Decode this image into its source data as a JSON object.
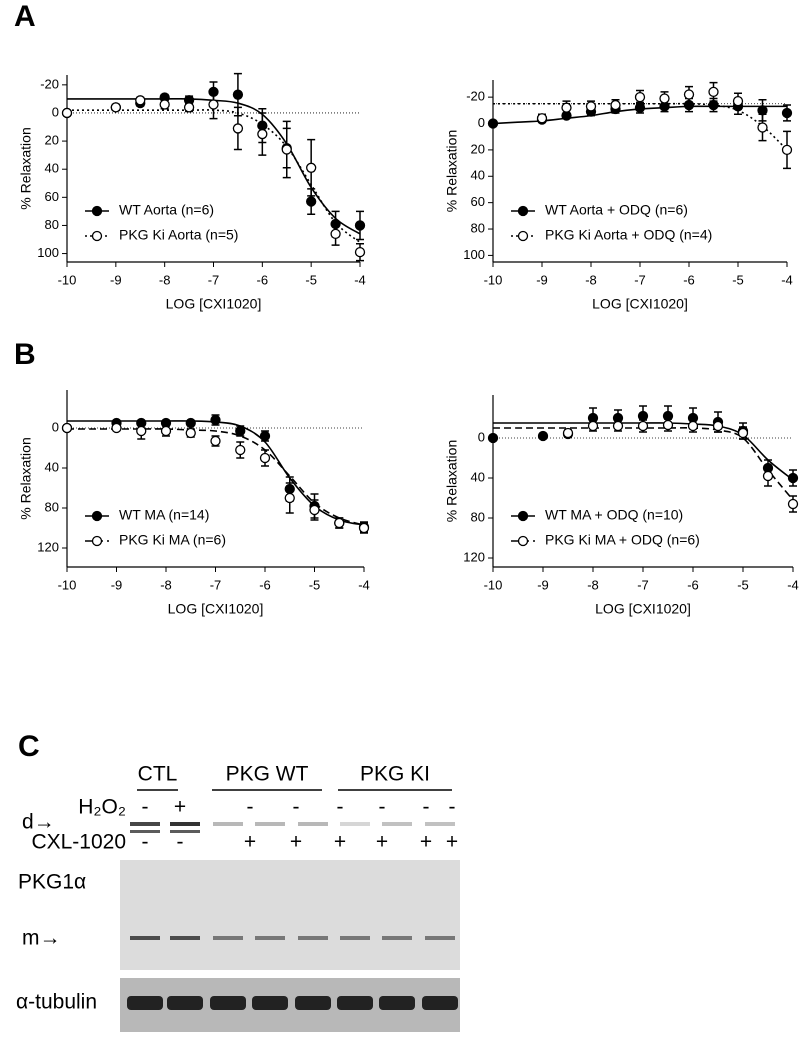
{
  "panel_labels": [
    "A",
    "B",
    "C"
  ],
  "chart_data": [
    {
      "type": "line",
      "xlabel": "LOG [CXI1020]",
      "ylabel": "% Relaxation",
      "xlim": [
        -10,
        -4
      ],
      "xticks": [
        -10,
        -9,
        -8,
        -7,
        -6,
        -5,
        -4
      ],
      "ylim": [
        -27,
        106
      ],
      "y_inverted": true,
      "yticks": [
        -20,
        0,
        20,
        40,
        60,
        80,
        100
      ],
      "reference_line": 0,
      "legend": "lower left",
      "x": [
        -10,
        -9,
        -8.5,
        -8,
        -7.5,
        -7,
        -6.5,
        -6,
        -5.5,
        -5,
        -4.5,
        -4
      ],
      "fit_x": [
        -10,
        -9.5,
        -9,
        -8.5,
        -8,
        -7.5,
        -7,
        -6.5,
        -6,
        -5.5,
        -5,
        -4.5,
        -4
      ],
      "series": [
        {
          "name": "WT Aorta (n=6)",
          "color": "#000000",
          "marker": "filled",
          "line_style": "solid",
          "values": [
            0,
            -4,
            -7,
            -11,
            -9,
            -15,
            -13,
            9,
            25,
            63,
            79,
            80
          ],
          "errors": [
            0,
            2,
            2,
            2,
            3,
            7,
            15,
            12,
            14,
            9,
            9,
            10
          ],
          "fit_values": [
            -10,
            -10,
            -10,
            -10,
            -10,
            -10,
            -9,
            -7,
            1,
            22,
            53,
            75,
            86
          ]
        },
        {
          "name": "PKG Ki Aorta (n=5)",
          "color": "#000000",
          "marker": "open",
          "line_style": "dotted",
          "values": [
            0,
            -4,
            -9,
            -6,
            -4,
            -6,
            11,
            15,
            26,
            39,
            86,
            99
          ],
          "errors": [
            0,
            2,
            2,
            3,
            3,
            10,
            15,
            15,
            20,
            20,
            8,
            6
          ],
          "fit_values": [
            -2,
            -2,
            -2,
            -2,
            -2,
            -2,
            -2,
            0,
            8,
            24,
            51,
            78,
            92
          ]
        }
      ]
    },
    {
      "type": "line",
      "xlabel": "LOG [CXI1020]",
      "ylabel": "% Relaxation",
      "xlim": [
        -10,
        -4
      ],
      "xticks": [
        -10,
        -9,
        -8,
        -7,
        -6,
        -5,
        -4
      ],
      "ylim": [
        -33,
        105
      ],
      "y_inverted": true,
      "yticks": [
        -20,
        0,
        20,
        40,
        60,
        80,
        100
      ],
      "reference_line": -15,
      "legend": "lower left",
      "x": [
        -10,
        -9,
        -8.5,
        -8,
        -7.5,
        -7,
        -6.5,
        -6,
        -5.5,
        -5,
        -4.5,
        -4
      ],
      "fit_x": [
        -10,
        -9.5,
        -9,
        -8.5,
        -8,
        -7.5,
        -7,
        -6.5,
        -6,
        -5.5,
        -5,
        -4.5,
        -4
      ],
      "series": [
        {
          "name": "WT Aorta + ODQ (n=6)",
          "color": "#000000",
          "marker": "filled",
          "line_style": "solid",
          "values": [
            0,
            -3,
            -6,
            -9,
            -11,
            -12,
            -13,
            -14,
            -14,
            -13,
            -10,
            -8
          ],
          "errors": [
            0,
            2,
            2,
            3,
            3,
            4,
            4,
            5,
            5,
            6,
            8,
            6
          ],
          "fit_values": [
            0,
            -1,
            -2,
            -4,
            -6,
            -9,
            -11,
            -12,
            -13,
            -13,
            -13,
            -13,
            -13
          ]
        },
        {
          "name": "PKG Ki Aorta + ODQ (n=4)",
          "color": "#000000",
          "marker": "open",
          "line_style": "dotted",
          "values": [
            null,
            -4,
            -12,
            -13,
            -14,
            -20,
            -19,
            -22,
            -24,
            -17,
            3,
            20
          ],
          "errors": [
            null,
            3,
            5,
            4,
            4,
            5,
            5,
            6,
            7,
            6,
            10,
            14
          ],
          "fit_values": [
            -15,
            -15,
            -15,
            -15,
            -15,
            -15,
            -15,
            -15,
            -15,
            -14,
            -10,
            2,
            20
          ]
        }
      ]
    },
    {
      "type": "line",
      "xlabel": "LOG [CXI1020]",
      "ylabel": "% Relaxation",
      "xlim": [
        -10,
        -4
      ],
      "xticks": [
        -10,
        -9,
        -8,
        -7,
        -6,
        -5,
        -4
      ],
      "ylim": [
        -38,
        139
      ],
      "y_inverted": true,
      "yticks": [
        0,
        40,
        80,
        120
      ],
      "reference_line": 0,
      "legend": "lower left",
      "x": [
        -10,
        -9,
        -8.5,
        -8,
        -7.5,
        -7,
        -6.5,
        -6,
        -5.5,
        -5,
        -4.5,
        -4
      ],
      "fit_x": [
        -10,
        -9.5,
        -9,
        -8.5,
        -8,
        -7.5,
        -7,
        -6.5,
        -6,
        -5.5,
        -5,
        -4.5,
        -4
      ],
      "series": [
        {
          "name": "WT MA  (n=14)",
          "color": "#000000",
          "marker": "filled",
          "line_style": "solid",
          "values": [
            0,
            -5,
            -5,
            -5,
            -5,
            -8,
            3,
            8,
            61,
            78,
            95,
            99
          ],
          "errors": [
            0,
            2,
            2,
            2,
            2,
            5,
            5,
            5,
            12,
            12,
            5,
            5
          ],
          "fit_values": [
            -7,
            -7,
            -7,
            -7,
            -7,
            -7,
            -6,
            -2,
            14,
            50,
            78,
            92,
            97
          ]
        },
        {
          "name": "PKG Ki MA  (n=6)",
          "color": "#000000",
          "marker": "open",
          "line_style": "dashed",
          "values": [
            0,
            0,
            3,
            3,
            5,
            13,
            22,
            30,
            70,
            82,
            95,
            100
          ],
          "errors": [
            0,
            2,
            8,
            5,
            4,
            5,
            8,
            8,
            15,
            10,
            5,
            5
          ],
          "fit_values": [
            1,
            1,
            1,
            1,
            1,
            2,
            3,
            8,
            22,
            48,
            75,
            90,
            97
          ]
        }
      ]
    },
    {
      "type": "line",
      "xlabel": "LOG [CXI1020]",
      "ylabel": "% Relaxation",
      "xlim": [
        -10,
        -4
      ],
      "xticks": [
        -10,
        -9,
        -8,
        -7,
        -6,
        -5,
        -4
      ],
      "ylim": [
        -43,
        129
      ],
      "y_inverted": true,
      "yticks": [
        0,
        40,
        80,
        120
      ],
      "reference_line": 0,
      "legend": "lower left",
      "x": [
        -10,
        -9,
        -8.5,
        -8,
        -7.5,
        -7,
        -6.5,
        -6,
        -5.5,
        -5,
        -4.5,
        -4
      ],
      "fit_x": [
        -10,
        -9.5,
        -9,
        -8.5,
        -8,
        -7.5,
        -7,
        -6.5,
        -6,
        -5.5,
        -5,
        -4.5,
        -4
      ],
      "series": [
        {
          "name": "WT MA + ODQ  (n=10)",
          "color": "#000000",
          "marker": "filled",
          "line_style": "solid",
          "values": [
            0,
            -2,
            -4,
            -20,
            -20,
            -22,
            -22,
            -20,
            -16,
            -7,
            30,
            40
          ],
          "errors": [
            0,
            2,
            3,
            10,
            8,
            10,
            10,
            10,
            10,
            8,
            8,
            8
          ],
          "fit_values": [
            -15,
            -15,
            -15,
            -15,
            -15,
            -15,
            -15,
            -15,
            -14,
            -12,
            -3,
            22,
            42
          ]
        },
        {
          "name": "PKG Ki MA + ODQ  (n=6)",
          "color": "#000000",
          "marker": "open",
          "line_style": "dashed",
          "values": [
            null,
            null,
            -5,
            -12,
            -12,
            -12,
            -13,
            -12,
            -12,
            -5,
            38,
            66
          ],
          "errors": [
            null,
            null,
            3,
            5,
            5,
            6,
            6,
            6,
            6,
            6,
            10,
            8
          ],
          "fit_values": [
            -10,
            -10,
            -10,
            -10,
            -10,
            -10,
            -10,
            -10,
            -10,
            -8,
            0,
            32,
            62
          ]
        }
      ]
    }
  ],
  "blot": {
    "groups": [
      "CTL",
      "PKG WT",
      "PKG KI"
    ],
    "rows": [
      {
        "label": "H₂O₂",
        "signs": [
          "-",
          "+",
          "-",
          "-",
          "-",
          "-",
          "-",
          "-"
        ]
      },
      {
        "label": "CXL-1020",
        "signs": [
          "-",
          "-",
          "+",
          "+",
          "+",
          "+",
          "+",
          "+"
        ]
      }
    ],
    "band_labels": [
      "d→",
      "m→"
    ],
    "protein_label": "PKG1α",
    "loading_label": "α-tubulin"
  }
}
